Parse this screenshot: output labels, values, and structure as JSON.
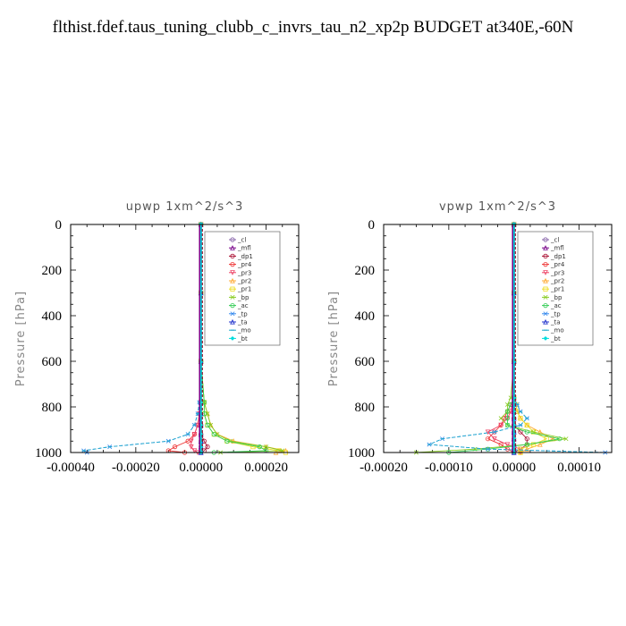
{
  "title": "flthist.fdef.taus_tuning_clubb_c_invrs_tau_n2_xp2p  BUDGET at340E,-60N",
  "legend": [
    {
      "label": "_cl",
      "color": "#8866aa",
      "marker": "circle"
    },
    {
      "label": "_mfl",
      "color": "#770088",
      "marker": "triangle"
    },
    {
      "label": "_dp1",
      "color": "#aa1133",
      "marker": "circle"
    },
    {
      "label": "_pr4",
      "color": "#ee3333",
      "marker": "circle"
    },
    {
      "label": "_pr3",
      "color": "#ee4466",
      "marker": "triangle-down"
    },
    {
      "label": "_pr2",
      "color": "#ffaa33",
      "marker": "triangle"
    },
    {
      "label": "_pr1",
      "color": "#eedd22",
      "marker": "square"
    },
    {
      "label": "_bp",
      "color": "#88cc22",
      "marker": "x"
    },
    {
      "label": "_ac",
      "color": "#33cc55",
      "marker": "circle"
    },
    {
      "label": "_tp",
      "color": "#3388ee",
      "marker": "x"
    },
    {
      "label": "_ta",
      "color": "#2233cc",
      "marker": "triangle"
    },
    {
      "label": "_mo",
      "color": "#22aacc",
      "marker": "dash"
    },
    {
      "label": "_bt",
      "color": "#00dddd",
      "marker": "diamond"
    }
  ],
  "chart_data": [
    {
      "type": "line",
      "title": "upwp  1xm^2/s^3",
      "ylabel": "Pressure [hPa]",
      "xlim": [
        -0.0004,
        0.0003
      ],
      "ylim": [
        1000,
        0
      ],
      "x_ticks": [
        "-0.00040",
        "-0.00020",
        "0.00000",
        "0.00020"
      ],
      "x_tick_values": [
        -0.0004,
        -0.0002,
        0.0,
        0.0002
      ],
      "y_ticks": [
        "0",
        "200",
        "400",
        "600",
        "800",
        "1000"
      ],
      "y_tick_values": [
        0,
        200,
        400,
        600,
        800,
        1000
      ],
      "pressure": [
        0,
        300,
        600,
        780,
        830,
        880,
        920,
        950,
        975,
        992,
        1000
      ],
      "series": [
        {
          "name": "_cl",
          "values": [
            0,
            0,
            0,
            0,
            0,
            0,
            0,
            0,
            0,
            0,
            0
          ]
        },
        {
          "name": "_mfl",
          "values": [
            0,
            0,
            0,
            0,
            0,
            0,
            0,
            0,
            0,
            0,
            0
          ]
        },
        {
          "name": "_dp1",
          "values": [
            0,
            0,
            0,
            0,
            0,
            0,
            0,
            1e-05,
            2e-05,
            1e-05,
            0
          ]
        },
        {
          "name": "_pr4",
          "values": [
            0,
            0,
            0,
            0,
            -5e-06,
            -1e-05,
            -2e-05,
            -4e-05,
            -8e-05,
            -0.0001,
            -5e-05
          ]
        },
        {
          "name": "_pr3",
          "values": [
            0,
            0,
            0,
            0,
            -5e-06,
            -1e-05,
            -2e-05,
            -3e-05,
            -3e-05,
            -2e-05,
            -1e-05
          ]
        },
        {
          "name": "_pr2",
          "values": [
            0,
            0,
            0,
            1e-05,
            2e-05,
            3e-05,
            5e-05,
            0.0001,
            0.0002,
            0.00026,
            0.00023
          ]
        },
        {
          "name": "_pr1",
          "values": [
            0,
            0,
            0,
            1e-05,
            1e-05,
            2e-05,
            4e-05,
            8e-05,
            0.00016,
            0.00024,
            0.00026
          ]
        },
        {
          "name": "_bp",
          "values": [
            0,
            0,
            0,
            1e-05,
            2e-05,
            3e-05,
            5e-05,
            9e-05,
            0.0002,
            0.00025,
            6e-05
          ]
        },
        {
          "name": "_ac",
          "values": [
            0,
            0,
            0,
            1e-05,
            1e-05,
            2e-05,
            4e-05,
            8e-05,
            0.00018,
            0.0002,
            4e-05
          ]
        },
        {
          "name": "_tp",
          "values": [
            0,
            0,
            0,
            -5e-06,
            -1e-05,
            -2e-05,
            -4e-05,
            -0.0001,
            -0.00028,
            -0.00036,
            -0.00035
          ]
        },
        {
          "name": "_ta",
          "values": [
            0,
            0,
            0,
            0,
            0,
            0,
            0,
            0,
            0,
            0,
            0
          ]
        },
        {
          "name": "_mo",
          "values": [
            0,
            0,
            0,
            -5e-06,
            -1e-05,
            -2e-05,
            -4e-05,
            -0.0001,
            -0.00028,
            -0.00036,
            -0.00035
          ]
        },
        {
          "name": "_bt",
          "values": [
            0,
            0,
            0,
            0,
            0,
            0,
            0,
            0,
            0,
            0,
            0
          ]
        }
      ]
    },
    {
      "type": "line",
      "title": "vpwp  1xm^2/s^3",
      "ylabel": "Pressure [hPa]",
      "xlim": [
        -0.0002,
        0.00015
      ],
      "ylim": [
        1000,
        0
      ],
      "x_ticks": [
        "-0.00020",
        "-0.00010",
        "0.00000",
        "0.00010"
      ],
      "x_tick_values": [
        -0.0002,
        -0.0001,
        0.0,
        0.0001
      ],
      "y_ticks": [
        "0",
        "200",
        "400",
        "600",
        "800",
        "1000"
      ],
      "y_tick_values": [
        0,
        200,
        400,
        600,
        800,
        1000
      ],
      "pressure": [
        0,
        300,
        600,
        760,
        790,
        820,
        850,
        880,
        910,
        940,
        965,
        985,
        1000
      ],
      "series": [
        {
          "name": "_cl",
          "values": [
            0,
            0,
            0,
            0,
            0,
            0,
            0,
            0,
            0,
            0,
            0,
            0,
            0
          ]
        },
        {
          "name": "_mfl",
          "values": [
            0,
            0,
            0,
            0,
            0,
            0,
            0,
            0,
            0,
            0,
            0,
            0,
            0
          ]
        },
        {
          "name": "_dp1",
          "values": [
            0,
            0,
            0,
            0,
            0,
            0,
            0,
            0,
            1e-05,
            2e-05,
            2e-05,
            1e-05,
            0
          ]
        },
        {
          "name": "_pr4",
          "values": [
            0,
            0,
            0,
            0,
            -5e-06,
            -1e-05,
            -1.5e-05,
            -2e-05,
            -3e-05,
            -4e-05,
            -2e-05,
            -1e-05,
            0
          ]
        },
        {
          "name": "_pr3",
          "values": [
            0,
            0,
            0,
            0,
            -3e-06,
            -5e-06,
            -1e-05,
            -2e-05,
            -4e-05,
            -3e-05,
            -1e-05,
            1e-05,
            1e-05
          ]
        },
        {
          "name": "_pr2",
          "values": [
            0,
            0,
            0,
            0,
            3e-06,
            5e-06,
            1e-05,
            2e-05,
            4e-05,
            6e-05,
            4e-05,
            2e-05,
            1e-05
          ]
        },
        {
          "name": "_pr1",
          "values": [
            0,
            0,
            0,
            0,
            3e-06,
            5e-06,
            1e-05,
            2e-05,
            3e-05,
            5e-05,
            3e-05,
            1e-05,
            1e-05
          ]
        },
        {
          "name": "_bp",
          "values": [
            0,
            0,
            0,
            -5e-06,
            -1e-05,
            -1e-05,
            -2e-05,
            -1e-05,
            3e-05,
            8e-05,
            2e-05,
            -6e-05,
            -0.00015
          ]
        },
        {
          "name": "_ac",
          "values": [
            0,
            0,
            0,
            0,
            -5e-06,
            -1e-05,
            -1e-05,
            -1e-05,
            2e-05,
            7e-05,
            2e-05,
            -4e-05,
            -0.0001
          ]
        },
        {
          "name": "_tp",
          "values": [
            0,
            0,
            0,
            0,
            5e-06,
            1e-05,
            2e-05,
            1e-05,
            -3e-05,
            -0.00011,
            -0.00013,
            -4e-05,
            0.00014
          ]
        },
        {
          "name": "_ta",
          "values": [
            0,
            0,
            0,
            0,
            0,
            0,
            0,
            0,
            0,
            0,
            0,
            0,
            0
          ]
        },
        {
          "name": "_mo",
          "values": [
            0,
            0,
            0,
            0,
            5e-06,
            1e-05,
            2e-05,
            1e-05,
            -3e-05,
            -0.00011,
            -0.00013,
            -4e-05,
            0.00014
          ]
        },
        {
          "name": "_bt",
          "values": [
            0,
            0,
            0,
            0,
            0,
            0,
            0,
            0,
            0,
            0,
            0,
            0,
            0
          ]
        }
      ]
    }
  ]
}
